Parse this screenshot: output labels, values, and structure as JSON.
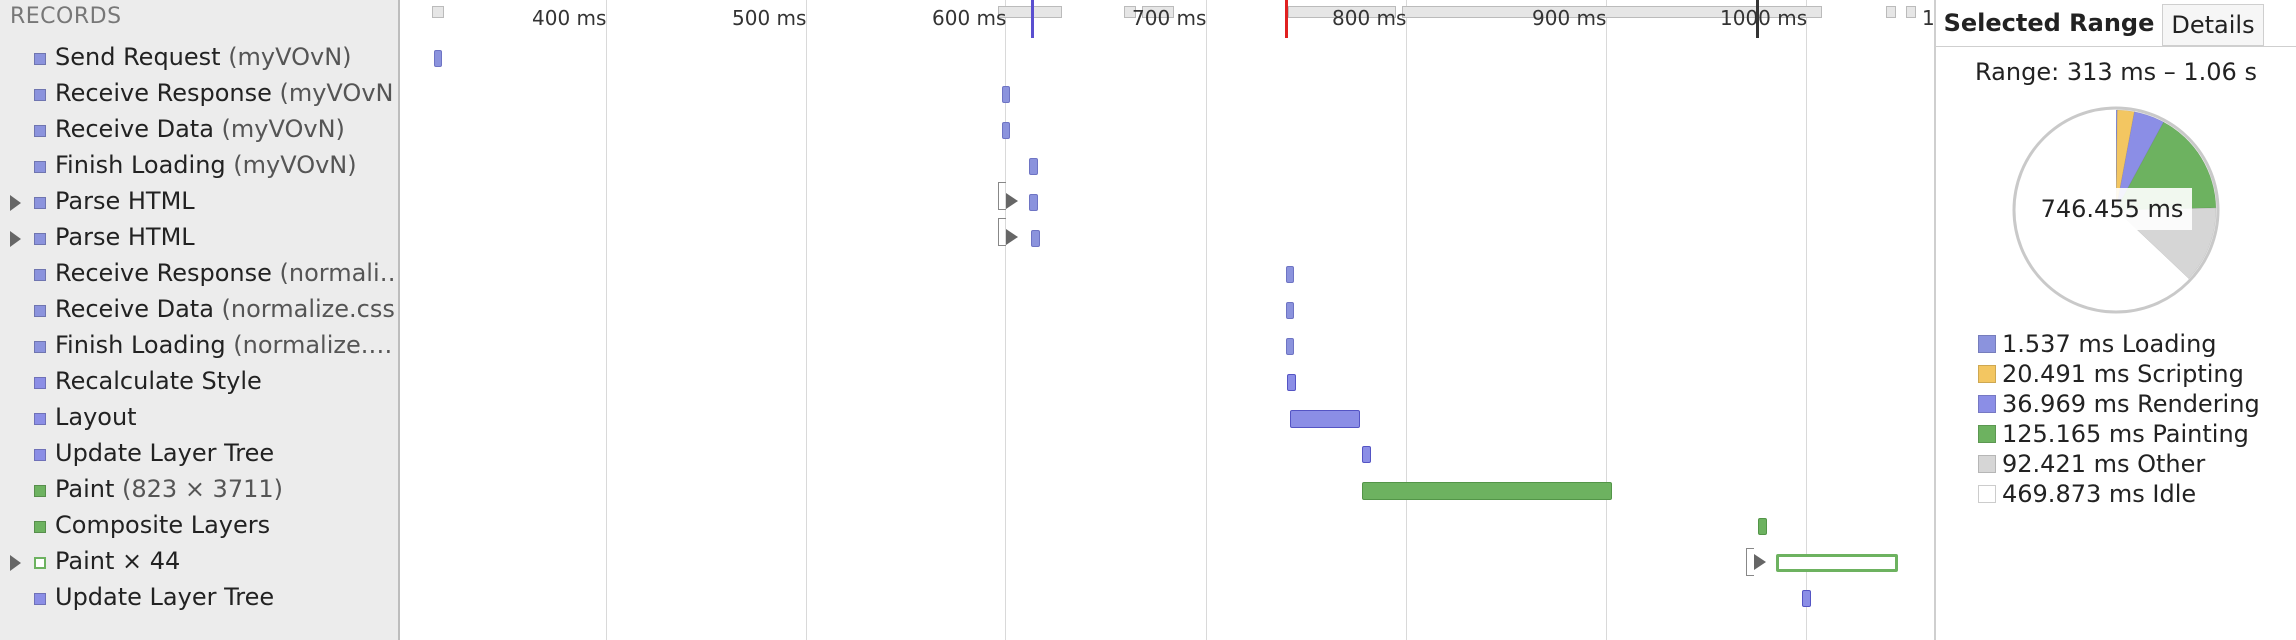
{
  "records_header": "RECORDS",
  "records": [
    {
      "label": "Send Request",
      "detail": " (myVOvN)",
      "color": "#8b93dd",
      "expandable": false,
      "hollow": false
    },
    {
      "label": "Receive Response",
      "detail": " (myVOvN)",
      "color": "#8b93dd",
      "expandable": false,
      "hollow": false
    },
    {
      "label": "Receive Data",
      "detail": " (myVOvN)",
      "color": "#8b93dd",
      "expandable": false,
      "hollow": false
    },
    {
      "label": "Finish Loading",
      "detail": " (myVOvN)",
      "color": "#8b93dd",
      "expandable": false,
      "hollow": false
    },
    {
      "label": "Parse HTML",
      "detail": "",
      "color": "#8b93dd",
      "expandable": true,
      "hollow": false
    },
    {
      "label": "Parse HTML",
      "detail": "",
      "color": "#8b93dd",
      "expandable": true,
      "hollow": false
    },
    {
      "label": "Receive Response",
      "detail": " (normali…",
      "color": "#8b93dd",
      "expandable": false,
      "hollow": false
    },
    {
      "label": "Receive Data",
      "detail": " (normalize.css)",
      "color": "#8b93dd",
      "expandable": false,
      "hollow": false
    },
    {
      "label": "Finish Loading",
      "detail": " (normalize.…",
      "color": "#8b93dd",
      "expandable": false,
      "hollow": false
    },
    {
      "label": "Recalculate Style",
      "detail": "",
      "color": "#8b8ee6",
      "expandable": false,
      "hollow": false
    },
    {
      "label": "Layout",
      "detail": "",
      "color": "#8b8ee6",
      "expandable": false,
      "hollow": false
    },
    {
      "label": "Update Layer Tree",
      "detail": "",
      "color": "#8b8ee6",
      "expandable": false,
      "hollow": false
    },
    {
      "label": "Paint",
      "detail": " (823 × 3711)",
      "color": "#6db260",
      "expandable": false,
      "hollow": false
    },
    {
      "label": "Composite Layers",
      "detail": "",
      "color": "#6db260",
      "expandable": false,
      "hollow": false
    },
    {
      "label": "Paint × 44",
      "detail": "",
      "color": "#6db260",
      "expandable": true,
      "hollow": true
    },
    {
      "label": "Update Layer Tree",
      "detail": "",
      "color": "#8b8ee6",
      "expandable": false,
      "hollow": false
    }
  ],
  "ruler": {
    "labels": [
      "400 ms",
      "500 ms",
      "600 ms",
      "700 ms",
      "800 ms",
      "900 ms",
      "1000 ms",
      "1"
    ]
  },
  "summary": {
    "tab_selected": "Selected Range",
    "tab_details": "Details",
    "range_text": "Range: 313 ms – 1.06 s",
    "total": "746.455 ms",
    "legend": [
      {
        "text": "1.537 ms Loading",
        "value": 1.537,
        "color": "#8b93dd"
      },
      {
        "text": "20.491 ms Scripting",
        "value": 20.491,
        "color": "#f3c661"
      },
      {
        "text": "36.969 ms Rendering",
        "value": 36.969,
        "color": "#8b8ee6"
      },
      {
        "text": "125.165 ms Painting",
        "value": 125.165,
        "color": "#6db260"
      },
      {
        "text": "92.421 ms Other",
        "value": 92.421,
        "color": "#d6d6d6"
      },
      {
        "text": "469.873 ms Idle",
        "value": 469.873,
        "color": "#ffffff"
      }
    ]
  }
}
